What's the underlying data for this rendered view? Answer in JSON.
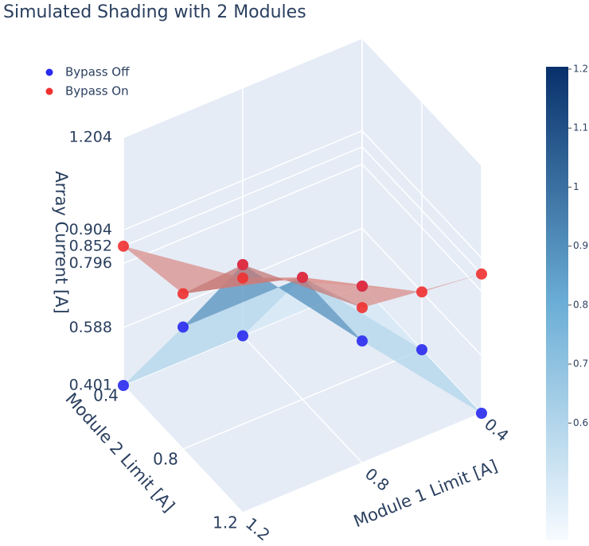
{
  "chart_data": {
    "type": "scatter3d",
    "title": "Simulated Shading with 2 Modules",
    "xlabel": "Module 1 Limit [A]",
    "ylabel": "Module 2 Limit [A]",
    "zlabel": "Array Current [A]",
    "xlim": [
      0.4,
      1.2
    ],
    "ylim": [
      0.4,
      1.2
    ],
    "zlim": [
      0.401,
      1.204
    ],
    "xticks": [
      0.4,
      0.8,
      1.2
    ],
    "yticks": [
      0.4,
      0.8,
      1.2
    ],
    "zticks": [
      0.401,
      0.588,
      0.796,
      0.852,
      0.904,
      1.204
    ],
    "grid": true,
    "legend_position": "upper left",
    "series": [
      {
        "name": "Bypass Off",
        "color": "#2929f0",
        "colorscale": [
          "#f7fbff",
          "#6baed6",
          "#08306b"
        ],
        "x": [
          0.4,
          0.4,
          0.4,
          0.8,
          0.8,
          0.8,
          1.2,
          1.2,
          1.2
        ],
        "y": [
          0.4,
          0.8,
          1.2,
          0.4,
          0.8,
          1.2,
          0.4,
          0.8,
          1.2
        ],
        "z": [
          0.401,
          0.401,
          0.401,
          0.401,
          0.796,
          0.796,
          0.401,
          0.796,
          1.204
        ]
      },
      {
        "name": "Bypass On",
        "color": "#f03030",
        "colorscale": [
          "#f2d9d4",
          "#d98c88",
          "#a0585a"
        ],
        "x": [
          0.4,
          0.4,
          0.4,
          0.8,
          0.8,
          0.8,
          1.2,
          1.2,
          1.2
        ],
        "y": [
          0.4,
          0.8,
          1.2,
          0.4,
          0.8,
          1.2,
          0.4,
          0.8,
          1.2
        ],
        "z": [
          0.401,
          0.588,
          0.852,
          0.588,
          0.796,
          0.904,
          0.852,
          0.904,
          1.204
        ]
      }
    ],
    "colorbar": {
      "ticks": [
        0.6,
        0.7,
        0.8,
        0.9,
        1,
        1.1,
        1.2
      ]
    }
  }
}
